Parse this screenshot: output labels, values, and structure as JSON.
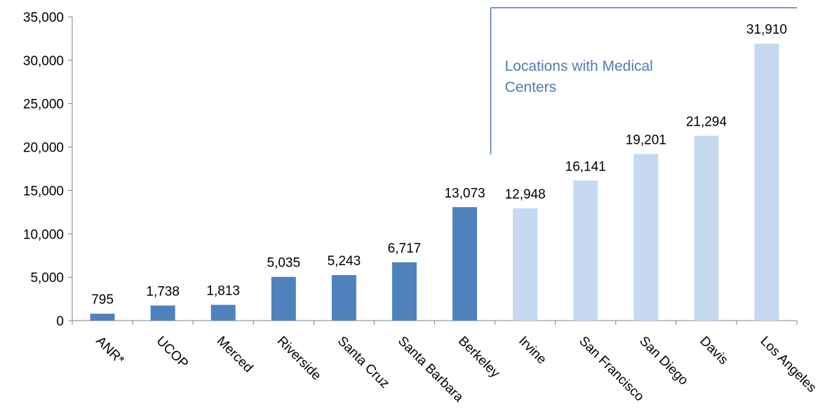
{
  "chart_data": {
    "type": "bar",
    "title": "",
    "xlabel": "",
    "ylabel": "",
    "ylim": [
      0,
      35000
    ],
    "yticks": [
      0,
      5000,
      10000,
      15000,
      20000,
      25000,
      30000,
      35000
    ],
    "ytick_labels": [
      "0",
      "5,000",
      "10,000",
      "15,000",
      "20,000",
      "25,000",
      "30,000",
      "35,000"
    ],
    "grid": false,
    "legend": "none",
    "categories": [
      "ANR*",
      "UCOP",
      "Merced",
      "Riverside",
      "Santa Cruz",
      "Santa Barbara",
      "Berkeley",
      "Irvine",
      "San Francisco",
      "San Diego",
      "Davis",
      "Los Angeles"
    ],
    "values": [
      795,
      1738,
      1813,
      5035,
      5243,
      6717,
      13073,
      12948,
      16141,
      19201,
      21294,
      31910
    ],
    "value_labels": [
      "795",
      "1,738",
      "1,813",
      "5,035",
      "5,243",
      "6,717",
      "13,073",
      "12,948",
      "16,141",
      "19,201",
      "21,294",
      "31,910"
    ],
    "medical_center": [
      false,
      false,
      false,
      false,
      false,
      false,
      false,
      true,
      true,
      true,
      true,
      true
    ],
    "annotation": {
      "line1": "Locations with Medical",
      "line2": "Centers",
      "spans_from_category": "Irvine",
      "spans_to_category": "Los Angeles"
    },
    "colors": {
      "bar_default": "#4f81bd",
      "bar_medical": "#c6d9f1",
      "axis": "#808080",
      "annotation": "#4f7cb3"
    }
  }
}
